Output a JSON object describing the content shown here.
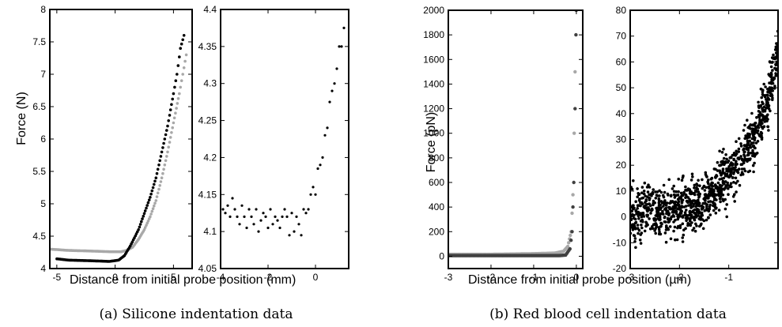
{
  "chart_data": [
    {
      "id": "a-left",
      "type": "scatter",
      "xlim": [
        -5.6,
        6.6
      ],
      "ylim": [
        4,
        8
      ],
      "xticks": [
        -5,
        0,
        5
      ],
      "yticks": [
        4,
        4.5,
        5,
        5.5,
        6,
        6.5,
        7,
        7.5,
        8
      ],
      "ylabel": "Force (N)",
      "series": [
        {
          "color": "#a8a8a8",
          "points": [
            [
              -5.6,
              4.3
            ],
            [
              -4,
              4.28
            ],
            [
              -2,
              4.27
            ],
            [
              -0.5,
              4.26
            ],
            [
              0.5,
              4.26
            ],
            [
              1,
              4.28
            ],
            [
              1.5,
              4.33
            ],
            [
              2,
              4.45
            ],
            [
              2.5,
              4.6
            ],
            [
              3,
              4.8
            ],
            [
              3.5,
              5.05
            ],
            [
              4,
              5.4
            ],
            [
              4.5,
              5.8
            ],
            [
              5,
              6.25
            ],
            [
              5.5,
              6.7
            ],
            [
              5.8,
              7.0
            ],
            [
              6.1,
              7.3
            ]
          ]
        },
        {
          "color": "#000000",
          "points": [
            [
              -5,
              4.15
            ],
            [
              -4,
              4.13
            ],
            [
              -2,
              4.12
            ],
            [
              -0.5,
              4.11
            ],
            [
              0.3,
              4.13
            ],
            [
              0.8,
              4.2
            ],
            [
              1.3,
              4.35
            ],
            [
              2,
              4.6
            ],
            [
              2.5,
              4.85
            ],
            [
              3,
              5.1
            ],
            [
              3.5,
              5.4
            ],
            [
              4,
              5.8
            ],
            [
              4.5,
              6.2
            ],
            [
              5,
              6.7
            ],
            [
              5.3,
              7.0
            ],
            [
              5.6,
              7.4
            ],
            [
              5.9,
              7.6
            ]
          ]
        }
      ]
    },
    {
      "id": "a-right",
      "type": "scatter",
      "xlim": [
        -4,
        1.4
      ],
      "ylim": [
        4.05,
        4.4
      ],
      "xticks": [
        -4,
        -2,
        0
      ],
      "yticks": [
        4.05,
        4.1,
        4.15,
        4.2,
        4.25,
        4.3,
        4.35,
        4.4
      ],
      "series": [
        {
          "color": "#000000",
          "points": [
            [
              -3.9,
              4.13
            ],
            [
              -3.8,
              4.125
            ],
            [
              -3.7,
              4.135
            ],
            [
              -3.6,
              4.12
            ],
            [
              -3.5,
              4.145
            ],
            [
              -3.4,
              4.13
            ],
            [
              -3.3,
              4.12
            ],
            [
              -3.2,
              4.11
            ],
            [
              -3.1,
              4.135
            ],
            [
              -3.0,
              4.12
            ],
            [
              -2.9,
              4.105
            ],
            [
              -2.8,
              4.13
            ],
            [
              -2.7,
              4.12
            ],
            [
              -2.6,
              4.11
            ],
            [
              -2.5,
              4.13
            ],
            [
              -2.4,
              4.1
            ],
            [
              -2.3,
              4.115
            ],
            [
              -2.2,
              4.125
            ],
            [
              -2.1,
              4.12
            ],
            [
              -2.0,
              4.105
            ],
            [
              -1.9,
              4.13
            ],
            [
              -1.8,
              4.11
            ],
            [
              -1.7,
              4.12
            ],
            [
              -1.6,
              4.115
            ],
            [
              -1.5,
              4.105
            ],
            [
              -1.4,
              4.12
            ],
            [
              -1.3,
              4.13
            ],
            [
              -1.2,
              4.12
            ],
            [
              -1.1,
              4.095
            ],
            [
              -1.0,
              4.125
            ],
            [
              -0.9,
              4.1
            ],
            [
              -0.8,
              4.12
            ],
            [
              -0.7,
              4.11
            ],
            [
              -0.6,
              4.095
            ],
            [
              -0.5,
              4.13
            ],
            [
              -0.4,
              4.125
            ],
            [
              -0.3,
              4.13
            ],
            [
              -0.2,
              4.15
            ],
            [
              -0.1,
              4.16
            ],
            [
              0.0,
              4.15
            ],
            [
              0.1,
              4.185
            ],
            [
              0.2,
              4.19
            ],
            [
              0.3,
              4.2
            ],
            [
              0.4,
              4.23
            ],
            [
              0.5,
              4.24
            ],
            [
              0.6,
              4.275
            ],
            [
              0.7,
              4.29
            ],
            [
              0.8,
              4.3
            ],
            [
              0.9,
              4.32
            ],
            [
              1.0,
              4.35
            ],
            [
              1.1,
              4.35
            ],
            [
              1.2,
              4.375
            ]
          ]
        }
      ]
    },
    {
      "id": "b-left",
      "type": "scatter",
      "xlim": [
        -3,
        0.15
      ],
      "ylim": [
        -100,
        2000
      ],
      "xticks": [
        -3,
        -2,
        -1,
        0
      ],
      "yticks": [
        0,
        200,
        400,
        600,
        800,
        1000,
        1200,
        1400,
        1600,
        1800,
        2000
      ],
      "ylabel": "Force (pN)",
      "series": [
        {
          "color": "#a8a8a8",
          "points": [
            [
              -3,
              15
            ],
            [
              -2,
              15
            ],
            [
              -1,
              20
            ],
            [
              -0.5,
              25
            ],
            [
              -0.3,
              40
            ],
            [
              -0.2,
              80
            ],
            [
              -0.12,
              200
            ],
            [
              -0.08,
              500
            ],
            [
              -0.05,
              1000
            ],
            [
              -0.03,
              1500
            ],
            [
              -0.01,
              2000
            ]
          ]
        },
        {
          "color": "#404040",
          "points": [
            [
              -3,
              5
            ],
            [
              -2,
              5
            ],
            [
              -1,
              5
            ],
            [
              -0.4,
              5
            ],
            [
              -0.25,
              10
            ],
            [
              -0.15,
              60
            ],
            [
              -0.1,
              200
            ],
            [
              -0.06,
              600
            ],
            [
              -0.03,
              1200
            ],
            [
              -0.01,
              1800
            ],
            [
              0.0,
              2000
            ]
          ]
        }
      ]
    },
    {
      "id": "b-right",
      "type": "scatter",
      "xlim": [
        -3,
        0
      ],
      "ylim": [
        -20,
        80
      ],
      "xticks": [
        -3,
        -2,
        -1
      ],
      "yticks": [
        -20,
        -10,
        0,
        10,
        20,
        30,
        40,
        50,
        60,
        70,
        80
      ],
      "series": [
        {
          "color": "#000000",
          "trend": [
            [
              -3,
              2
            ],
            [
              -2.5,
              2
            ],
            [
              -2,
              3
            ],
            [
              -1.5,
              6
            ],
            [
              -1,
              15
            ],
            [
              -0.5,
              30
            ],
            [
              -0.2,
              45
            ],
            [
              0,
              65
            ]
          ],
          "noise": 7,
          "count": 1100
        }
      ]
    }
  ],
  "shared_xlabel": "Distance from initial probe position (mm)",
  "shared_xlabel_b": "Distance from initial probe position (µm)",
  "captions": {
    "a": "(a) Silicone indentation data",
    "b": "(b) Red blood cell indentation data"
  }
}
